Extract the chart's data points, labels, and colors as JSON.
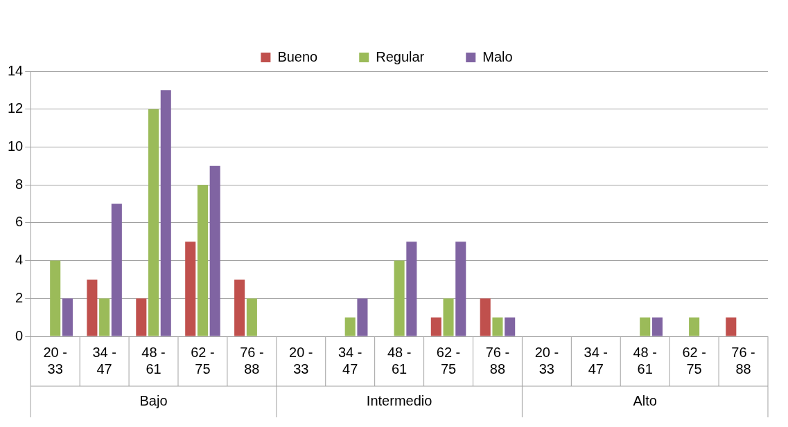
{
  "chart_data": {
    "type": "bar",
    "categories": [
      "20 - 33",
      "34 - 47",
      "48 - 61",
      "62 - 75",
      "76 - 88",
      "20 - 33",
      "34 - 47",
      "48 - 61",
      "62 - 75",
      "76 - 88",
      "20 - 33",
      "34 - 47",
      "48 - 61",
      "62 - 75",
      "76 - 88"
    ],
    "series": [
      {
        "name": "Bueno",
        "color": "#c0504d",
        "values": [
          0,
          3,
          2,
          5,
          3,
          0,
          0,
          0,
          1,
          2,
          0,
          0,
          0,
          0,
          1
        ]
      },
      {
        "name": "Regular",
        "color": "#9bbb59",
        "values": [
          4,
          2,
          12,
          8,
          2,
          0,
          1,
          4,
          2,
          1,
          0,
          0,
          1,
          1,
          0
        ]
      },
      {
        "name": "Malo",
        "color": "#8064a2",
        "values": [
          2,
          7,
          13,
          9,
          0,
          0,
          2,
          5,
          5,
          1,
          0,
          0,
          1,
          0,
          0
        ]
      }
    ],
    "ylim": [
      0,
      14
    ],
    "yticks": [
      0,
      2,
      4,
      6,
      8,
      10,
      12,
      14
    ],
    "grid": "y",
    "legend": "top",
    "annotations": [
      "Bajo",
      "Intermedio",
      "Alto"
    ]
  }
}
